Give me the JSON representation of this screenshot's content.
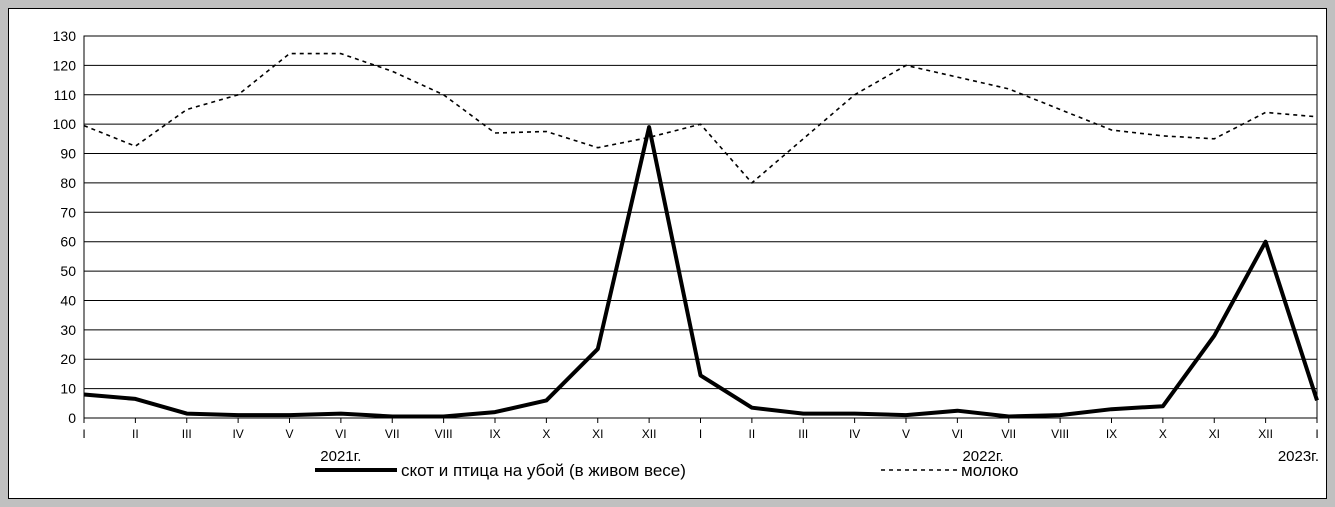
{
  "chart_data": {
    "type": "line",
    "x_labels": [
      "I",
      "II",
      "III",
      "IV",
      "V",
      "VI",
      "VII",
      "VIII",
      "IX",
      "X",
      "XI",
      "XII",
      "I",
      "II",
      "III",
      "IV",
      "V",
      "VI",
      "VII",
      "VIII",
      "IX",
      "X",
      "XI",
      "XII",
      "I"
    ],
    "year_labels": [
      {
        "label": "2021г.",
        "index": 5
      },
      {
        "label": "2022г.",
        "index": 17.5
      },
      {
        "label": "2023г.",
        "index": 24
      }
    ],
    "ylim": [
      0,
      130
    ],
    "yticks": [
      0,
      10,
      20,
      30,
      40,
      50,
      60,
      70,
      80,
      90,
      100,
      110,
      120,
      130
    ],
    "grid": true,
    "legend_position": "bottom",
    "series": [
      {
        "name": "скот и птица на убой  (в живом весе)",
        "style": "solid",
        "color": "#000000",
        "values": [
          8,
          6.5,
          1.5,
          1,
          1,
          1.5,
          0.5,
          0.5,
          2,
          6,
          23.5,
          99,
          14.5,
          3.5,
          1.5,
          1.5,
          1,
          2.5,
          0.5,
          1,
          3,
          4,
          28,
          60,
          6
        ]
      },
      {
        "name": "молоко",
        "style": "dotted",
        "color": "#000000",
        "values": [
          99.5,
          92.5,
          105,
          110,
          124,
          124,
          118,
          110,
          97,
          97.5,
          92,
          95.5,
          100,
          80,
          95,
          110,
          120,
          116,
          112,
          105,
          98,
          96,
          95,
          104,
          102.5
        ]
      }
    ]
  }
}
